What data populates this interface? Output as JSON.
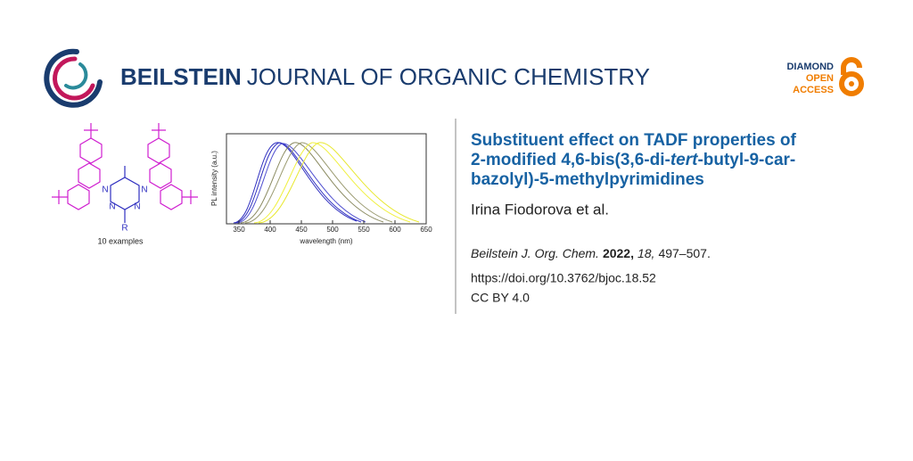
{
  "header": {
    "journal_bold": "BEILSTEIN",
    "journal_rest": "JOURNAL OF ORGANIC CHEMISTRY",
    "badge": [
      "DIAMOND",
      "OPEN",
      "ACCESS"
    ]
  },
  "graphic": {
    "atoms": [
      "N",
      "N",
      "N",
      "N",
      "R"
    ],
    "caption": "10 examples",
    "plot": {
      "y_label": "PL intensity (a.u.)",
      "x_label": "wavelength (nm)",
      "xlim": [
        330,
        650
      ],
      "xticks": [
        350,
        400,
        450,
        500,
        550,
        600,
        650
      ]
    }
  },
  "article": {
    "title": [
      "Substituent effect on TADF properties of",
      "2-modified 4,6-bis(3,6-di-",
      "tert",
      "-butyl-9-car-",
      "bazolyl)-5-methylpyrimidines"
    ],
    "authors": "Irina Fiodorova et al.",
    "citation": {
      "journal": "Beilstein J. Org. Chem.",
      "year": "2022,",
      "volume": "18,",
      "pages": "497–507."
    },
    "doi": "https://doi.org/10.3762/bjoc.18.52",
    "license": "CC BY 4.0"
  }
}
